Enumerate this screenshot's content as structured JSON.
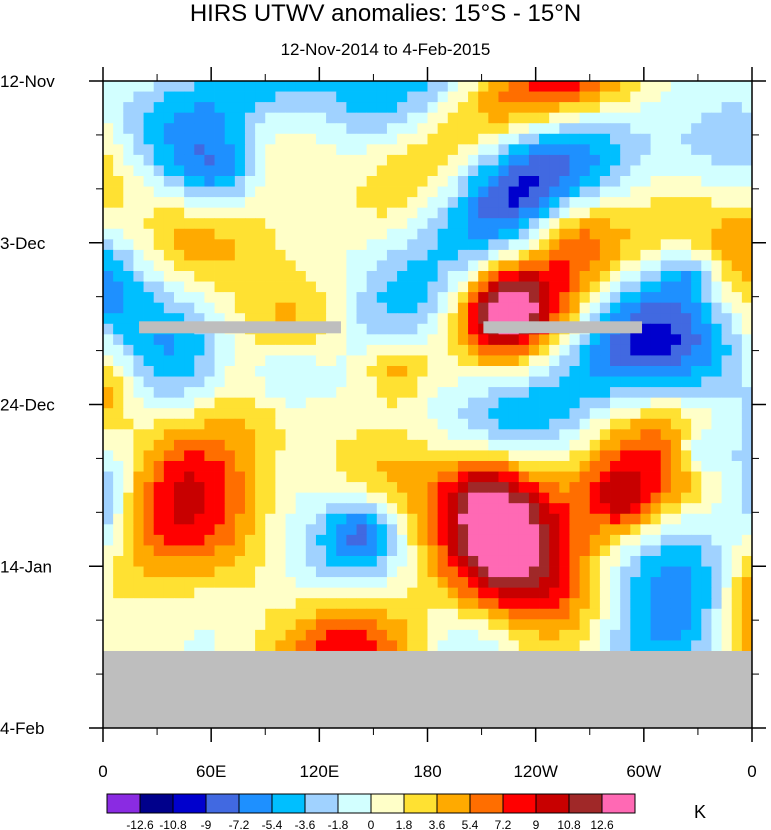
{
  "chart_data": {
    "type": "heatmap",
    "title": "HIRS UTWV anomalies: 15°S - 15°N",
    "subtitle": "12-Nov-2014 to 4-Feb-2015",
    "x_tick_labels": [
      "0",
      "60E",
      "120E",
      "180",
      "120W",
      "60W",
      "0"
    ],
    "y_tick_labels": [
      "12-Nov",
      "3-Dec",
      "24-Dec",
      "14-Jan",
      "4-Feb"
    ],
    "colorbar_labels": [
      "-12.6",
      "-10.8",
      "-9",
      "-7.2",
      "-5.4",
      "-3.6",
      "-1.8",
      "0",
      "1.8",
      "3.6",
      "5.4",
      "7.2",
      "9",
      "10.8",
      "12.6"
    ],
    "colorbar_colors": [
      "#8a2be2",
      "#00008b",
      "#0000cd",
      "#4169e1",
      "#1e90ff",
      "#00bfff",
      "#a0d2ff",
      "#d2ffff",
      "#ffffc8",
      "#ffe132",
      "#ffaa00",
      "#ff6e00",
      "#ff0000",
      "#c80000",
      "#a02828",
      "#ff69b4"
    ],
    "units": "K",
    "missing_color": "#bebebe",
    "x_range_degrees": [
      0,
      360
    ],
    "time_range": [
      "12-Nov-2014",
      "4-Feb-2015"
    ],
    "missing_data_from": "25-Jan-2015"
  }
}
